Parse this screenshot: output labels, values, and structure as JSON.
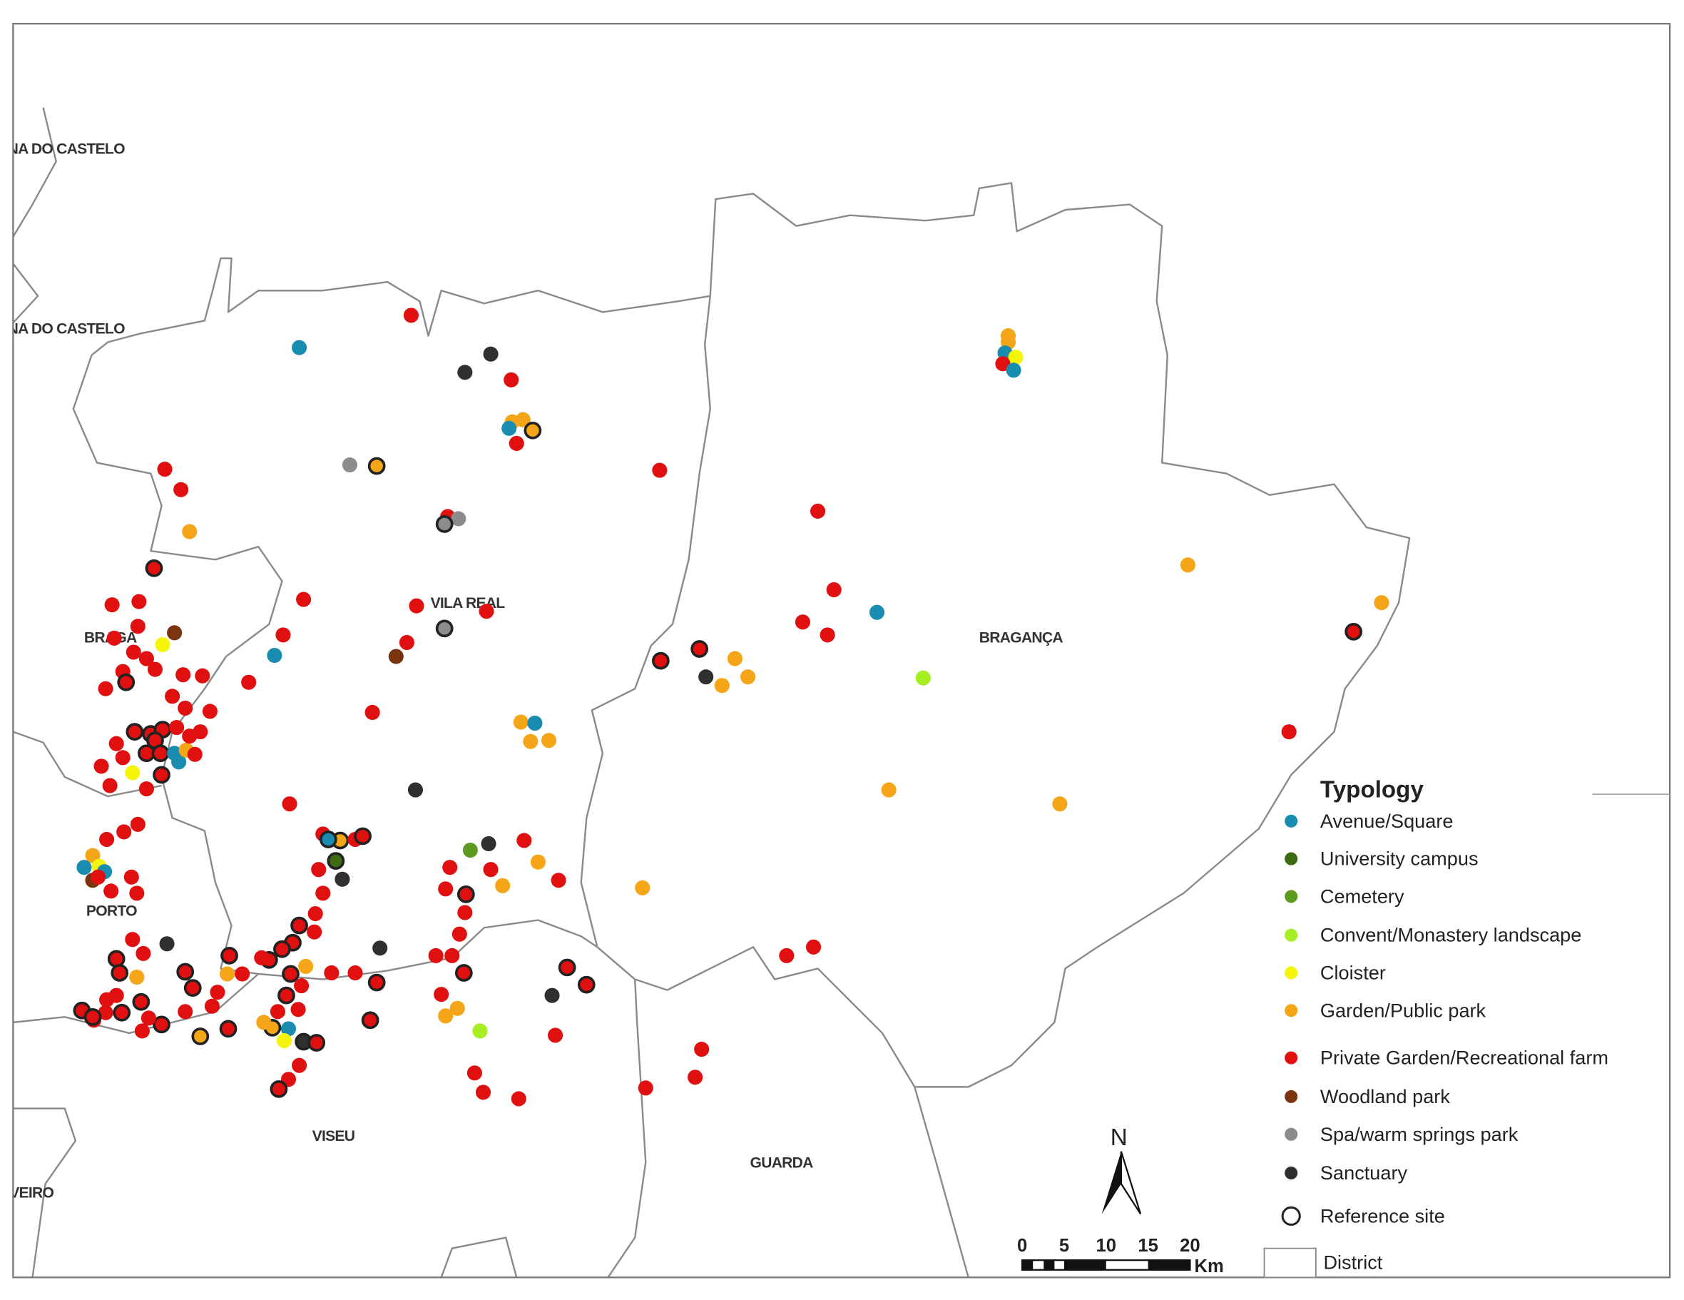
{
  "map": {
    "districts": [
      "VIANA DO CASTELO",
      "VIANA DO CASTELO",
      "BRAGA",
      "VILA REAL",
      "BRAGANÇA",
      "PORTO",
      "VISEU",
      "GUARDA",
      "AVEIRO"
    ],
    "legend": {
      "title": "Typology",
      "items": [
        {
          "label": "Avenue/Square",
          "color": "#1a8cb0"
        },
        {
          "label": "University campus",
          "color": "#3e6b12"
        },
        {
          "label": "Cemetery",
          "color": "#5e9a1f"
        },
        {
          "label": "Convent/Monastery landscape",
          "color": "#a8ee25"
        },
        {
          "label": "Cloister",
          "color": "#f5f50a"
        },
        {
          "label": "Garden/Public park",
          "color": "#f5a518"
        },
        {
          "label": "Private Garden/Recreational farm",
          "color": "#e01010"
        },
        {
          "label": "Woodland park",
          "color": "#7a3410"
        },
        {
          "label": "Spa/warm springs park",
          "color": "#8c8c8c"
        },
        {
          "label": "Sanctuary",
          "color": "#303030"
        }
      ],
      "reference_site": "Reference site",
      "district": "District"
    },
    "north": "N",
    "scale": {
      "labels": [
        "0",
        "5",
        "10",
        "15",
        "20"
      ],
      "unit": "Km"
    }
  }
}
